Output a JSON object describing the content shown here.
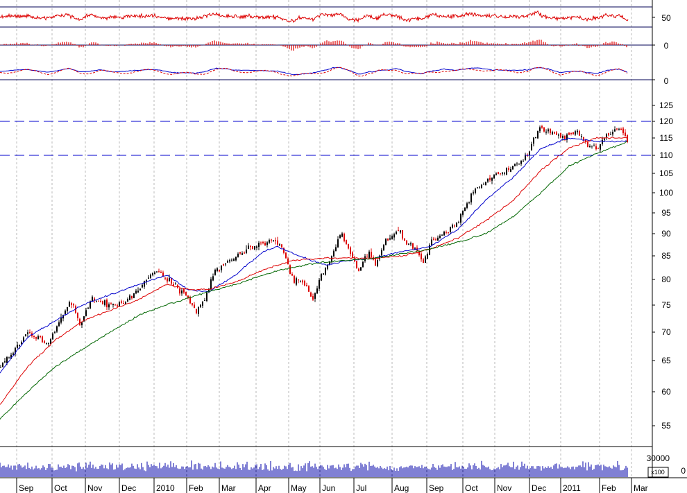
{
  "chart_data": {
    "type": "candlestick",
    "panels": [
      {
        "name": "",
        "type": "line",
        "position": "top-1",
        "ylim": [
          0,
          100
        ],
        "levels": [
          30,
          70
        ],
        "tick_labels": [
          "50"
        ],
        "color": "#dd0000"
      },
      {
        "name": "",
        "type": "histogram",
        "position": "top-2",
        "tick_labels": [
          "0"
        ],
        "color": "#dd0000"
      },
      {
        "name": "",
        "type": "line",
        "position": "top-3",
        "tick_labels": [
          "0"
        ],
        "colors": [
          "#0000cc",
          "#dd0000"
        ]
      },
      {
        "name": "",
        "type": "candlestick",
        "position": "main",
        "scale": "log",
        "ylim": [
          52,
          130
        ],
        "tick_labels": [
          "125",
          "120",
          "115",
          "110",
          "105",
          "100",
          "95",
          "90",
          "85",
          "80",
          "75",
          "70",
          "65",
          "60",
          "55"
        ],
        "horizontal_levels": [
          120,
          110
        ],
        "moving_averages": [
          {
            "color": "#0000cc",
            "anchors": [
              [
                0,
                63
              ],
              [
                40,
                69
              ],
              [
                80,
                72
              ],
              [
                120,
                75
              ],
              [
                160,
                77
              ],
              [
                200,
                79
              ],
              [
                240,
                81
              ],
              [
                270,
                78
              ],
              [
                300,
                77.5
              ],
              [
                340,
                81
              ],
              [
                380,
                86
              ],
              [
                400,
                87
              ],
              [
                430,
                85
              ],
              [
                470,
                83
              ],
              [
                500,
                84
              ],
              [
                540,
                84.5
              ],
              [
                580,
                86
              ],
              [
                620,
                87
              ],
              [
                660,
                91
              ],
              [
                700,
                98
              ],
              [
                740,
                104
              ],
              [
                780,
                112
              ],
              [
                820,
                115
              ],
              [
                860,
                114
              ],
              [
                905,
                114
              ]
            ]
          },
          {
            "color": "#dd0000",
            "anchors": [
              [
                0,
                58
              ],
              [
                40,
                64
              ],
              [
                80,
                68.5
              ],
              [
                120,
                72
              ],
              [
                160,
                74
              ],
              [
                200,
                76
              ],
              [
                240,
                79
              ],
              [
                270,
                78
              ],
              [
                300,
                78
              ],
              [
                340,
                79.5
              ],
              [
                380,
                82
              ],
              [
                420,
                84
              ],
              [
                460,
                84.5
              ],
              [
                500,
                84.5
              ],
              [
                540,
                84.5
              ],
              [
                580,
                85
              ],
              [
                620,
                86.5
              ],
              [
                660,
                89
              ],
              [
                700,
                93
              ],
              [
                740,
                98
              ],
              [
                780,
                106
              ],
              [
                820,
                112
              ],
              [
                860,
                115
              ],
              [
                905,
                115
              ]
            ]
          },
          {
            "color": "#006600",
            "anchors": [
              [
                0,
                56
              ],
              [
                40,
                60
              ],
              [
                80,
                64
              ],
              [
                120,
                67
              ],
              [
                160,
                70
              ],
              [
                200,
                73
              ],
              [
                240,
                75
              ],
              [
                300,
                77.5
              ],
              [
                340,
                79
              ],
              [
                380,
                81
              ],
              [
                420,
                82.5
              ],
              [
                460,
                83.5
              ],
              [
                500,
                84
              ],
              [
                540,
                84.5
              ],
              [
                580,
                85.5
              ],
              [
                620,
                86.5
              ],
              [
                660,
                88
              ],
              [
                700,
                90
              ],
              [
                740,
                94
              ],
              [
                780,
                100
              ],
              [
                820,
                107
              ],
              [
                860,
                110.5
              ],
              [
                905,
                114
              ]
            ]
          }
        ],
        "close_anchors": [
          [
            0,
            64
          ],
          [
            40,
            70
          ],
          [
            70,
            68
          ],
          [
            100,
            76
          ],
          [
            115,
            71
          ],
          [
            130,
            76
          ],
          [
            155,
            75
          ],
          [
            175,
            75
          ],
          [
            200,
            78
          ],
          [
            222,
            82
          ],
          [
            240,
            80
          ],
          [
            265,
            77
          ],
          [
            282,
            74
          ],
          [
            295,
            76
          ],
          [
            305,
            81
          ],
          [
            330,
            84
          ],
          [
            360,
            87
          ],
          [
            385,
            88
          ],
          [
            400,
            88
          ],
          [
            410,
            85
          ],
          [
            420,
            80
          ],
          [
            430,
            80
          ],
          [
            440,
            79
          ],
          [
            450,
            76
          ],
          [
            460,
            80
          ],
          [
            475,
            84
          ],
          [
            490,
            90
          ],
          [
            500,
            87
          ],
          [
            515,
            82
          ],
          [
            530,
            86
          ],
          [
            540,
            83
          ],
          [
            555,
            88
          ],
          [
            570,
            91
          ],
          [
            585,
            88
          ],
          [
            595,
            87
          ],
          [
            610,
            84
          ],
          [
            620,
            88
          ],
          [
            640,
            90
          ],
          [
            660,
            93
          ],
          [
            680,
            100
          ],
          [
            700,
            103
          ],
          [
            720,
            105
          ],
          [
            740,
            107
          ],
          [
            760,
            110
          ],
          [
            775,
            118
          ],
          [
            790,
            117
          ],
          [
            810,
            115
          ],
          [
            830,
            117
          ],
          [
            845,
            113
          ],
          [
            860,
            112
          ],
          [
            875,
            116
          ],
          [
            893,
            118
          ],
          [
            905,
            113
          ]
        ]
      },
      {
        "name": "",
        "type": "volume",
        "position": "bottom",
        "tick_labels": [
          "30000",
          "0"
        ],
        "unit_label": "x100"
      }
    ],
    "x_axis": {
      "months": [
        "Sep",
        "Oct",
        "Nov",
        "Dec",
        "2010",
        "Feb",
        "Mar",
        "Apr",
        "May",
        "Jun",
        "Jul",
        "Aug",
        "Sep",
        "Oct",
        "Nov",
        "Dec",
        "2011",
        "Feb",
        "Mar"
      ],
      "grid": "dashed-vertical"
    }
  }
}
